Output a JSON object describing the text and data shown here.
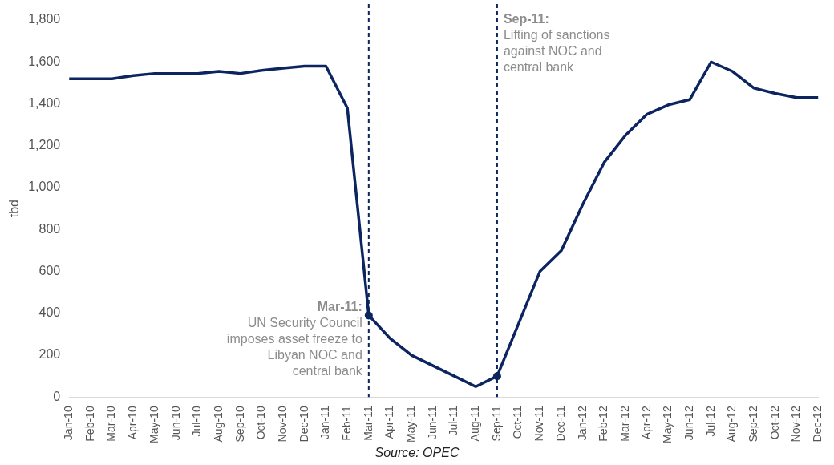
{
  "chart_data": {
    "type": "line",
    "ylabel": "tbd",
    "categories": [
      "Jan-10",
      "Feb-10",
      "Mar-10",
      "Apr-10",
      "May-10",
      "Jun-10",
      "Jul-10",
      "Aug-10",
      "Sep-10",
      "Oct-10",
      "Nov-10",
      "Dec-10",
      "Jan-11",
      "Feb-11",
      "Mar-11",
      "Apr-11",
      "May-11",
      "Jun-11",
      "Jul-11",
      "Aug-11",
      "Sep-11",
      "Oct-11",
      "Nov-11",
      "Dec-11",
      "Jan-12",
      "Feb-12",
      "Mar-12",
      "Apr-12",
      "May-12",
      "Jun-12",
      "Jul-12",
      "Aug-12",
      "Sep-12",
      "Oct-12",
      "Nov-12",
      "Dec-12"
    ],
    "series": [
      {
        "color": "#0c2560",
        "values": [
          1520,
          1520,
          1520,
          1535,
          1545,
          1545,
          1545,
          1555,
          1545,
          1560,
          1570,
          1580,
          1580,
          1380,
          390,
          280,
          200,
          150,
          100,
          50,
          100,
          350,
          600,
          700,
          920,
          1120,
          1250,
          1350,
          1395,
          1420,
          1600,
          1555,
          1475,
          1450,
          1430,
          1430
        ]
      }
    ],
    "ylim": [
      0,
      1800
    ],
    "yticks": [
      0,
      200,
      400,
      600,
      800,
      {
        "value": 1000,
        "label": "1,000"
      },
      {
        "value": 1200,
        "label": "1,200"
      },
      {
        "value": 1400,
        "label": "1,400"
      },
      {
        "value": 1600,
        "label": "1,600"
      },
      {
        "value": 1800,
        "label": "1,800"
      }
    ],
    "ref_lines": [
      {
        "axis": "x",
        "value": "Mar-11",
        "label": "Mar-11: UN Security Council imposes asset freeze to Libyan NOC and central bank",
        "color": "#0c2560",
        "line_style": "dashed"
      },
      {
        "axis": "x",
        "value": "Sep-11",
        "label": "Sep-11: Lifting of sanctions against NOC and central bank",
        "color": "#0c2560",
        "line_style": "dashed"
      }
    ],
    "annotations": [
      "Source: OPEC"
    ]
  }
}
